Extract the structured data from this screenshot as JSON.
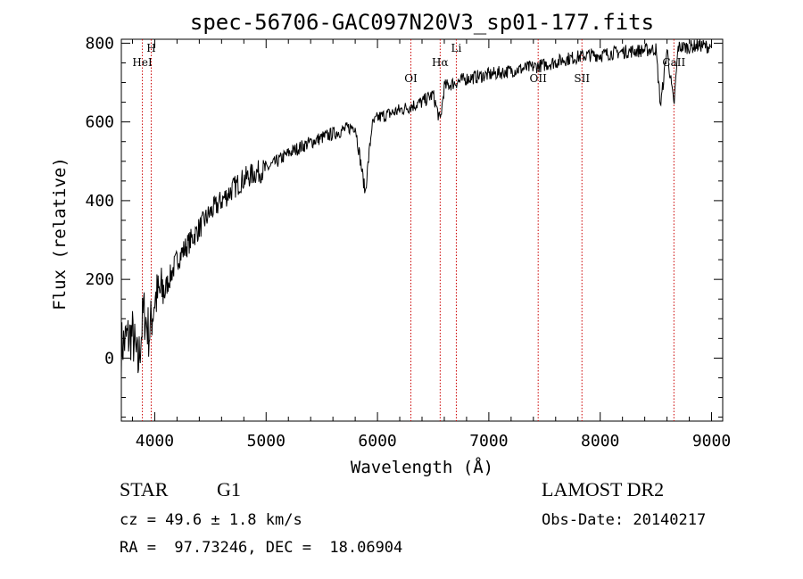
{
  "chart_data": {
    "type": "line",
    "title": "spec-56706-GAC097N20V3_sp01-177.fits",
    "xlabel": "Wavelength (Å)",
    "ylabel": "Flux (relative)",
    "xlim": [
      3700,
      9100
    ],
    "ylim": [
      -160,
      810
    ],
    "x_ticks": [
      4000,
      5000,
      6000,
      7000,
      8000,
      9000
    ],
    "y_ticks": [
      0,
      200,
      400,
      600,
      800
    ],
    "grid": false,
    "line_color": "#000000",
    "marker_color": "#cc0000",
    "series": [
      {
        "x": [
          3700,
          3750,
          3800,
          3850,
          3900,
          3950,
          4000,
          4100,
          4200,
          4300,
          4400,
          4500,
          4600,
          4700,
          4800,
          4900,
          5000,
          5100,
          5200,
          5300,
          5400,
          5500,
          5600,
          5700,
          5800,
          5890,
          5950,
          6000,
          6100,
          6200,
          6300,
          6400,
          6500,
          6563,
          6600,
          6700,
          6800,
          6900,
          7000,
          7100,
          7200,
          7300,
          7400,
          7500,
          7600,
          7700,
          7800,
          7900,
          8000,
          8100,
          8200,
          8300,
          8400,
          8500,
          8542,
          8600,
          8662,
          8700,
          8800,
          8900,
          8990
        ],
        "y": [
          30,
          50,
          60,
          -20,
          120,
          60,
          150,
          180,
          250,
          290,
          330,
          370,
          400,
          430,
          455,
          470,
          480,
          500,
          520,
          535,
          548,
          560,
          570,
          580,
          590,
          420,
          590,
          610,
          620,
          630,
          640,
          650,
          670,
          600,
          690,
          700,
          710,
          715,
          720,
          725,
          730,
          735,
          740,
          745,
          752,
          760,
          765,
          770,
          770,
          775,
          778,
          780,
          782,
          785,
          640,
          785,
          640,
          790,
          790,
          795,
          790
        ]
      }
    ],
    "line_markers": [
      {
        "label": "HeI",
        "x": 3889
      },
      {
        "label": "H",
        "x": 3968
      },
      {
        "label": "OI",
        "x": 6300
      },
      {
        "label": "Hα",
        "x": 6563
      },
      {
        "label": "Li",
        "x": 6708
      },
      {
        "label": "OII",
        "x": 7443
      },
      {
        "label": "SII",
        "x": 7836
      },
      {
        "label": "CaII",
        "x": 8662
      }
    ]
  },
  "info": {
    "class": "STAR",
    "subclass": "G1",
    "survey": "LAMOST DR2",
    "cz": "cz = 49.6 ± 1.8 km/s",
    "obs_date": "Obs-Date: 20140217",
    "radec": "RA =  97.73246, DEC =  18.06904"
  }
}
